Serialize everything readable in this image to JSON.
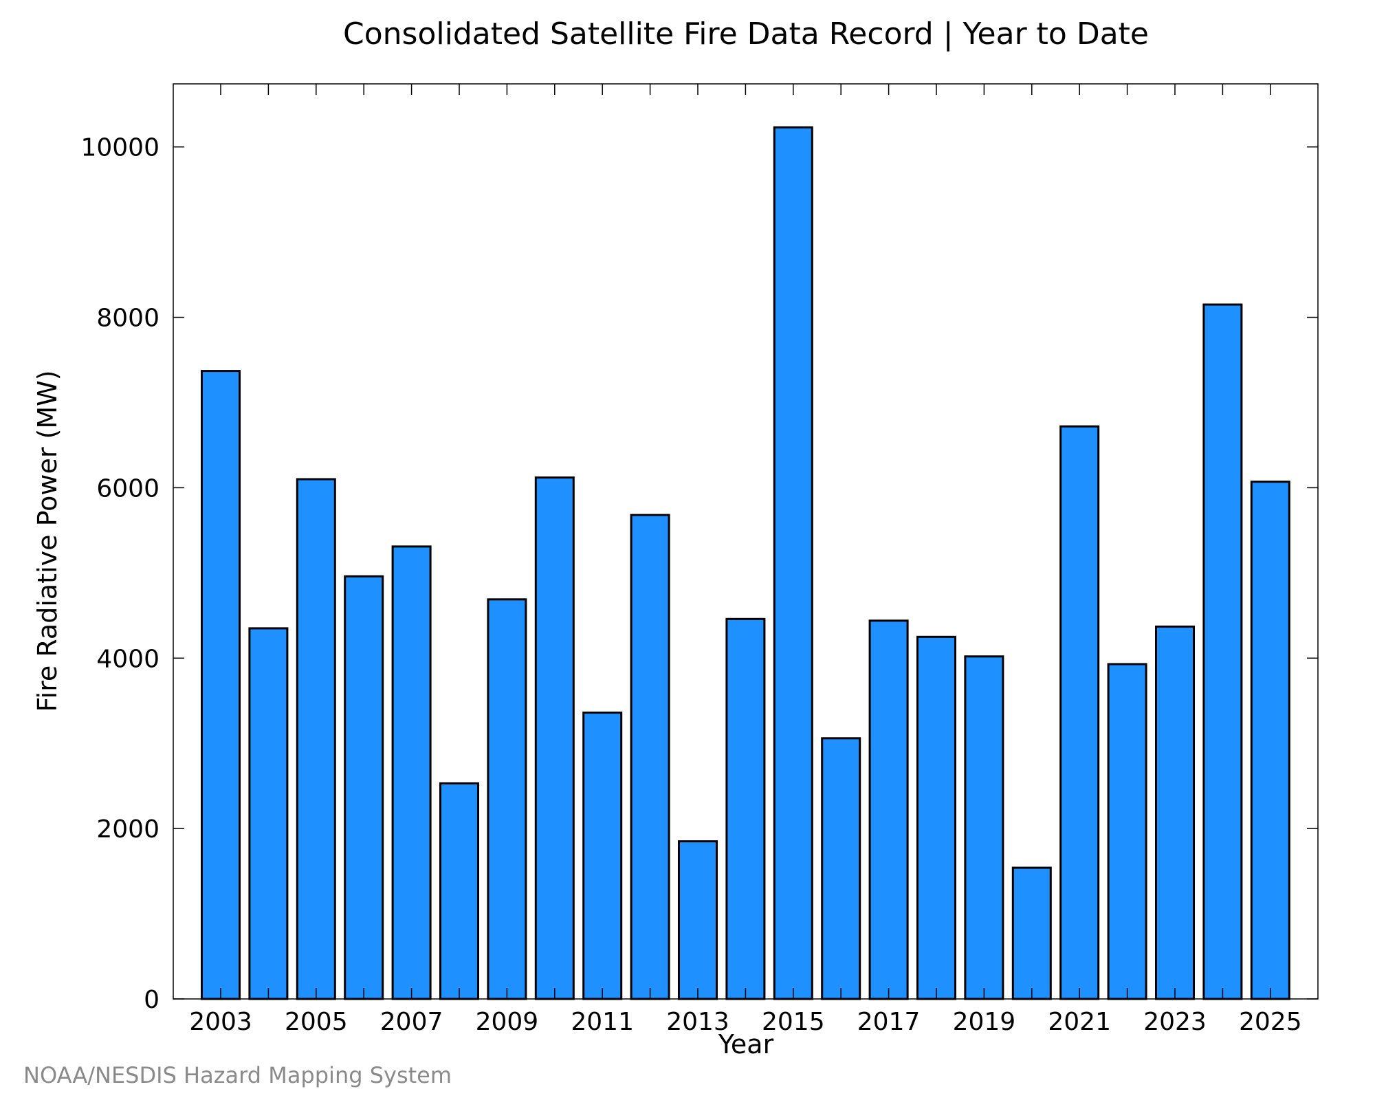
{
  "chart_data": {
    "type": "bar",
    "title": "Consolidated Satellite Fire Data Record | Year to Date",
    "xlabel": "Year",
    "ylabel": "Fire Radiative Power (MW)",
    "categories": [
      "2003",
      "2004",
      "2005",
      "2006",
      "2007",
      "2008",
      "2009",
      "2010",
      "2011",
      "2012",
      "2013",
      "2014",
      "2015",
      "2016",
      "2017",
      "2018",
      "2019",
      "2020",
      "2021",
      "2022",
      "2023",
      "2024",
      "2025"
    ],
    "values": [
      7370,
      4350,
      6100,
      4960,
      5310,
      2530,
      4690,
      6120,
      3360,
      5680,
      1850,
      4460,
      10230,
      3060,
      4440,
      4250,
      4020,
      1540,
      6720,
      3930,
      4370,
      8150,
      6070
    ],
    "x_tick_labels": [
      "2003",
      "2005",
      "2007",
      "2009",
      "2011",
      "2013",
      "2015",
      "2017",
      "2019",
      "2021",
      "2023",
      "2025"
    ],
    "y_ticks": [
      0,
      2000,
      4000,
      6000,
      8000,
      10000
    ],
    "y_tick_labels": [
      "0",
      "2000",
      "4000",
      "6000",
      "8000",
      "10000"
    ],
    "ylim": [
      0,
      10740
    ],
    "grid": false,
    "bar_color": "#1e90ff",
    "credit": "NOAA/NESDIS Hazard Mapping System"
  }
}
